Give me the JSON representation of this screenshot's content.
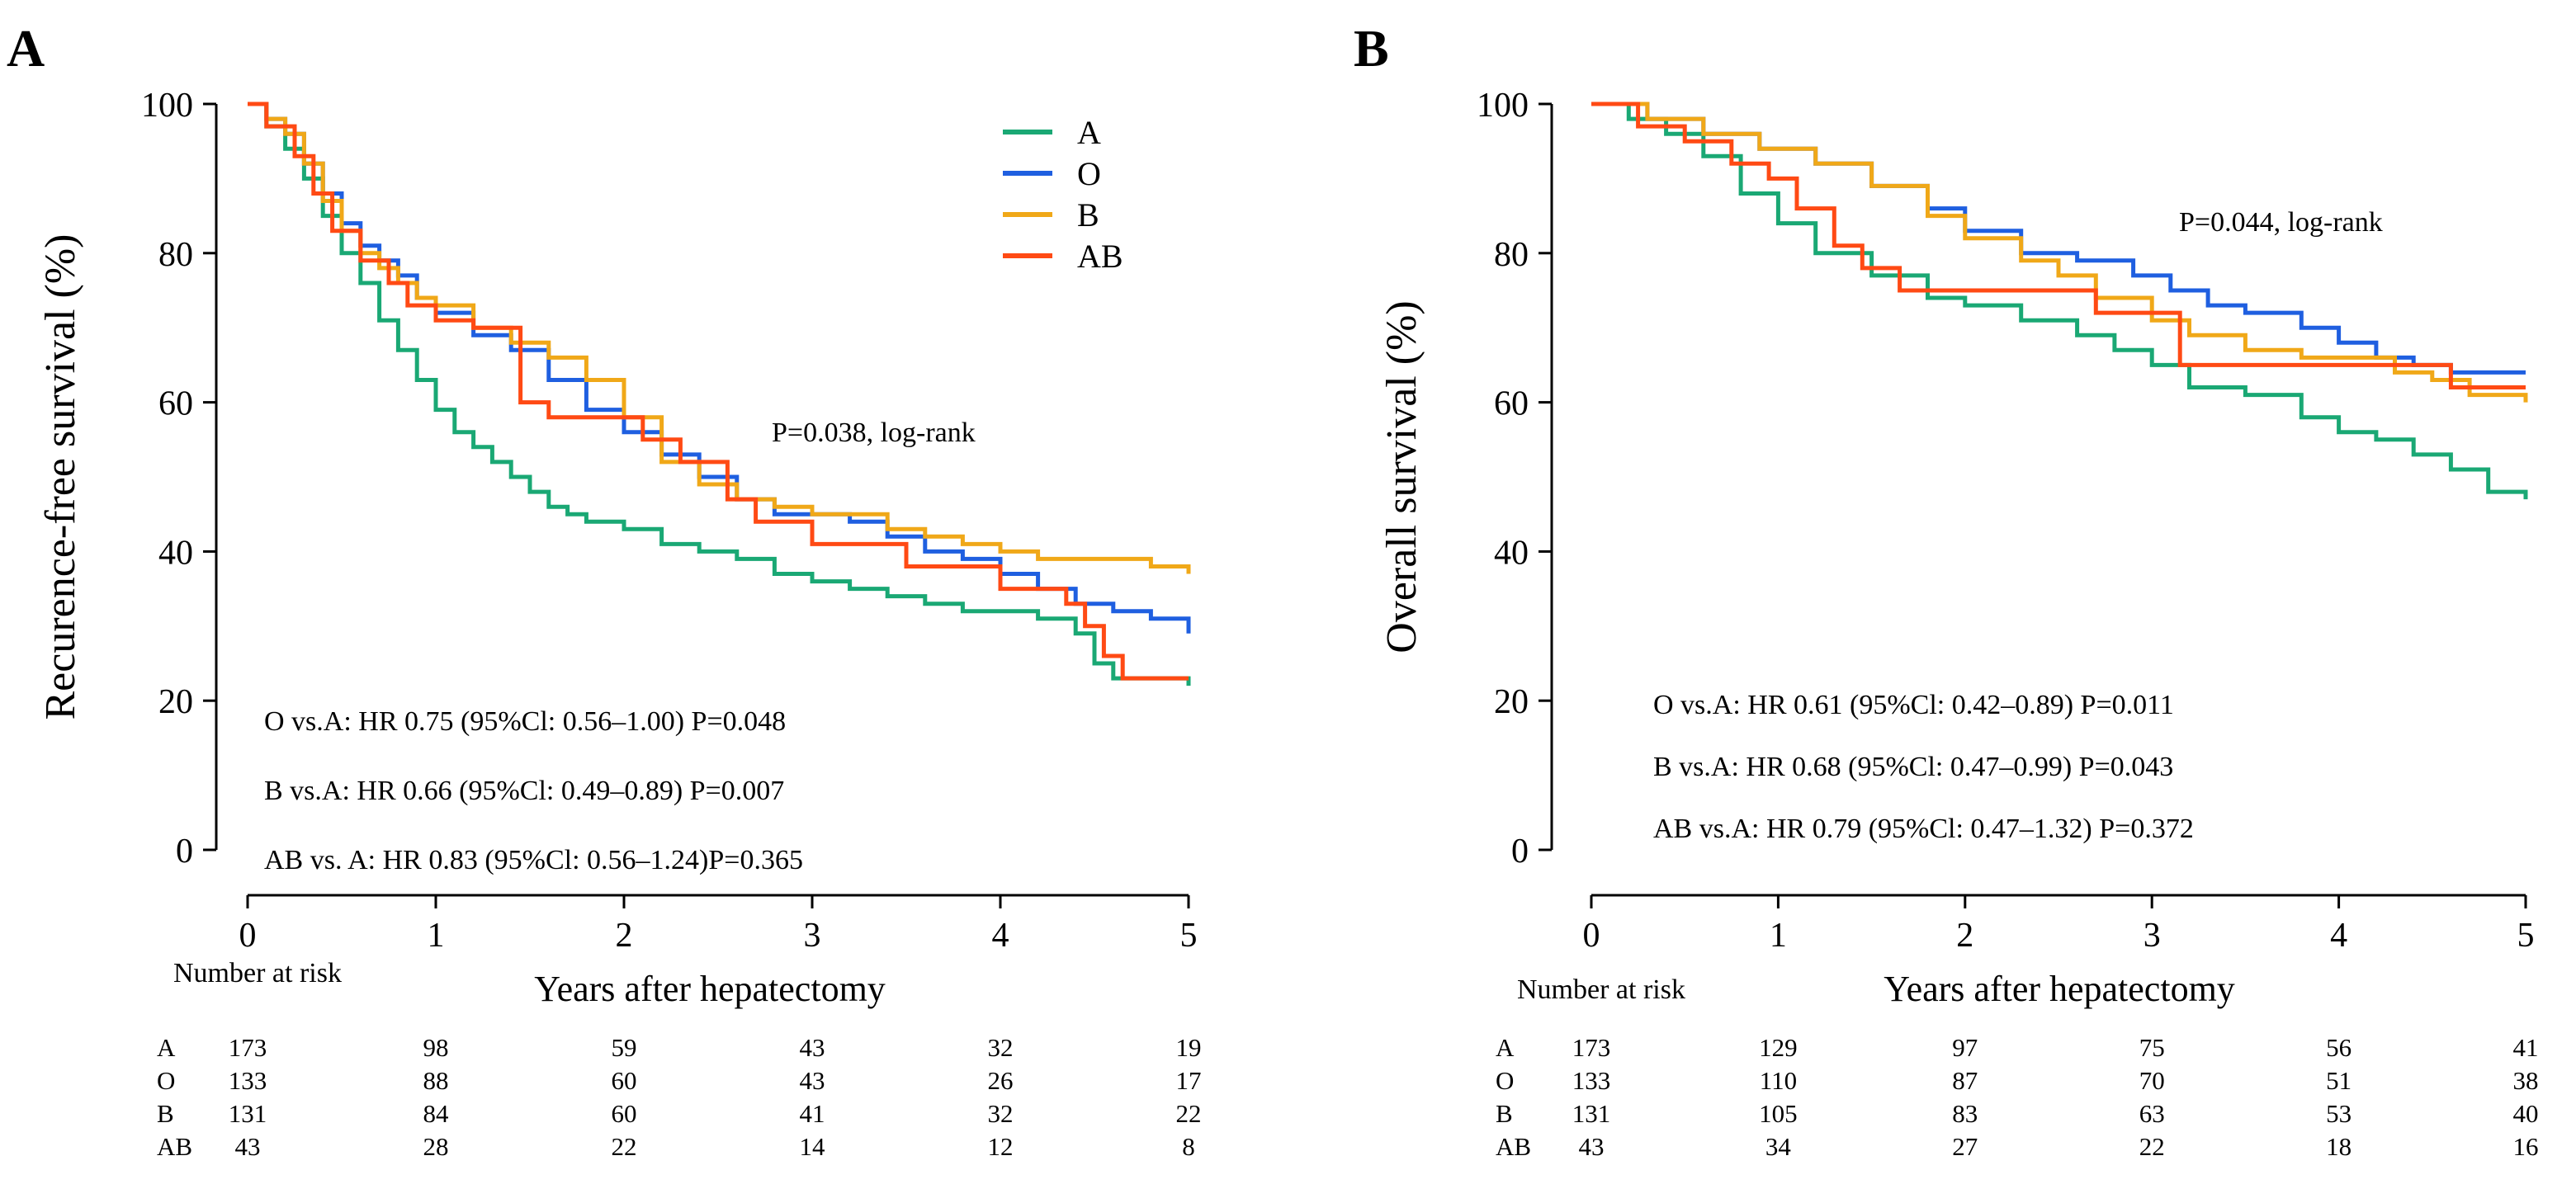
{
  "chart_data": [
    {
      "panel": "A",
      "type": "line",
      "subtype": "kaplan-meier",
      "title": "",
      "xlabel": "Years after hepatectomy",
      "ylabel": "Recurence-free survival (%)",
      "xlim": [
        0,
        5
      ],
      "ylim": [
        0,
        100
      ],
      "xticks": [
        "0",
        "1",
        "2",
        "3",
        "4",
        "5"
      ],
      "yticks": [
        "0",
        "20",
        "40",
        "60",
        "80",
        "100"
      ],
      "legend": {
        "position": "top-right",
        "entries": [
          "A",
          "O",
          "B",
          "AB"
        ]
      },
      "pvalue_text": "P=0.038, log-rank",
      "comparisons": [
        "O vs.A: HR 0.75 (95%Cl: 0.56–1.00)  P=0.048",
        "B vs.A: HR 0.66 (95%Cl: 0.49–0.89)  P=0.007",
        "AB vs. A: HR 0.83 (95%Cl: 0.56–1.24)P=0.365"
      ],
      "series": [
        {
          "name": "A",
          "color": "#1aa874",
          "x": [
            0,
            0.1,
            0.2,
            0.3,
            0.4,
            0.5,
            0.6,
            0.7,
            0.8,
            0.9,
            1.0,
            1.1,
            1.2,
            1.3,
            1.4,
            1.5,
            1.6,
            1.7,
            1.8,
            2.0,
            2.2,
            2.4,
            2.6,
            2.8,
            3.0,
            3.2,
            3.4,
            3.6,
            3.8,
            4.0,
            4.2,
            4.4,
            4.5,
            4.6,
            4.8,
            5.0
          ],
          "y": [
            100,
            97,
            94,
            90,
            85,
            80,
            76,
            71,
            67,
            63,
            59,
            56,
            54,
            52,
            50,
            48,
            46,
            45,
            44,
            43,
            41,
            40,
            39,
            37,
            36,
            35,
            34,
            33,
            32,
            32,
            31,
            29,
            25,
            23,
            23,
            22
          ]
        },
        {
          "name": "O",
          "color": "#1f5fe0",
          "x": [
            0,
            0.1,
            0.2,
            0.3,
            0.4,
            0.5,
            0.6,
            0.7,
            0.8,
            0.9,
            1.0,
            1.2,
            1.4,
            1.6,
            1.8,
            2.0,
            2.2,
            2.4,
            2.6,
            2.8,
            3.0,
            3.2,
            3.4,
            3.6,
            3.8,
            4.0,
            4.2,
            4.4,
            4.6,
            4.8,
            5.0
          ],
          "y": [
            100,
            98,
            96,
            92,
            88,
            84,
            81,
            79,
            77,
            74,
            72,
            69,
            67,
            63,
            59,
            56,
            53,
            50,
            47,
            45,
            45,
            44,
            42,
            40,
            39,
            37,
            35,
            33,
            32,
            31,
            29
          ]
        },
        {
          "name": "B",
          "color": "#f0a818",
          "x": [
            0,
            0.1,
            0.2,
            0.3,
            0.4,
            0.5,
            0.6,
            0.7,
            0.8,
            0.9,
            1.0,
            1.2,
            1.4,
            1.6,
            1.8,
            2.0,
            2.2,
            2.4,
            2.6,
            2.8,
            3.0,
            3.2,
            3.4,
            3.6,
            3.8,
            4.0,
            4.2,
            4.4,
            4.6,
            4.8,
            5.0
          ],
          "y": [
            100,
            98,
            96,
            92,
            87,
            83,
            80,
            78,
            76,
            74,
            73,
            70,
            68,
            66,
            63,
            58,
            52,
            49,
            47,
            46,
            45,
            45,
            43,
            42,
            41,
            40,
            39,
            39,
            39,
            38,
            37
          ]
        },
        {
          "name": "AB",
          "color": "#ff4a14",
          "x": [
            0,
            0.1,
            0.25,
            0.35,
            0.45,
            0.6,
            0.75,
            0.85,
            1.0,
            1.2,
            1.35,
            1.45,
            1.6,
            1.9,
            2.1,
            2.3,
            2.55,
            2.7,
            3.0,
            3.2,
            3.5,
            3.8,
            4.0,
            4.25,
            4.35,
            4.45,
            4.55,
            4.65,
            5.0
          ],
          "y": [
            100,
            97,
            93,
            88,
            83,
            79,
            76,
            73,
            71,
            70,
            70,
            60,
            58,
            58,
            55,
            52,
            47,
            44,
            41,
            41,
            38,
            38,
            35,
            35,
            33,
            30,
            26,
            23,
            23
          ]
        }
      ],
      "risk_table": {
        "header": "Number  at risk",
        "times": [
          0,
          1,
          2,
          3,
          4,
          5
        ],
        "rows": [
          {
            "group": "A",
            "counts": [
              "173",
              "98",
              "59",
              "43",
              "32",
              "19"
            ]
          },
          {
            "group": "O",
            "counts": [
              "133",
              "88",
              "60",
              "43",
              "26",
              "17"
            ]
          },
          {
            "group": "B",
            "counts": [
              "131",
              "84",
              "60",
              "41",
              "32",
              "22"
            ]
          },
          {
            "group": "AB",
            "counts": [
              "43",
              "28",
              "22",
              "14",
              "12",
              "8"
            ]
          }
        ]
      }
    },
    {
      "panel": "B",
      "type": "line",
      "subtype": "kaplan-meier",
      "title": "",
      "xlabel": "Years after hepatectomy",
      "ylabel": "Overall survival (%)",
      "xlim": [
        0,
        5
      ],
      "ylim": [
        0,
        100
      ],
      "xticks": [
        "0",
        "1",
        "2",
        "3",
        "4",
        "5"
      ],
      "yticks": [
        "0",
        "20",
        "40",
        "60",
        "80",
        "100"
      ],
      "pvalue_text": "P=0.044, log-rank",
      "comparisons": [
        "O vs.A: HR 0.61 (95%Cl: 0.42–0.89)  P=0.011",
        "B vs.A: HR 0.68 (95%Cl: 0.47–0.99)  P=0.043",
        "AB vs.A: HR 0.79 (95%Cl: 0.47–1.32)  P=0.372"
      ],
      "series": [
        {
          "name": "A",
          "color": "#1aa874",
          "x": [
            0,
            0.2,
            0.4,
            0.6,
            0.8,
            1.0,
            1.2,
            1.5,
            1.8,
            2.0,
            2.3,
            2.6,
            2.8,
            3.0,
            3.2,
            3.5,
            3.8,
            4.0,
            4.2,
            4.4,
            4.6,
            4.8,
            5.0
          ],
          "y": [
            100,
            98,
            96,
            93,
            88,
            84,
            80,
            77,
            74,
            73,
            71,
            69,
            67,
            65,
            62,
            61,
            58,
            56,
            55,
            53,
            51,
            48,
            47
          ]
        },
        {
          "name": "O",
          "color": "#1f5fe0",
          "x": [
            0,
            0.3,
            0.6,
            0.9,
            1.2,
            1.5,
            1.8,
            2.0,
            2.3,
            2.6,
            2.9,
            3.1,
            3.3,
            3.5,
            3.8,
            4.0,
            4.2,
            4.4,
            4.6,
            4.8,
            5.0
          ],
          "y": [
            100,
            98,
            96,
            94,
            92,
            89,
            86,
            83,
            80,
            79,
            77,
            75,
            73,
            72,
            70,
            68,
            66,
            65,
            64,
            64,
            64
          ]
        },
        {
          "name": "B",
          "color": "#f0a818",
          "x": [
            0,
            0.3,
            0.6,
            0.9,
            1.2,
            1.5,
            1.8,
            2.0,
            2.3,
            2.5,
            2.7,
            3.0,
            3.2,
            3.5,
            3.8,
            4.0,
            4.3,
            4.5,
            4.7,
            5.0
          ],
          "y": [
            100,
            98,
            96,
            94,
            92,
            89,
            85,
            82,
            79,
            77,
            74,
            71,
            69,
            67,
            66,
            66,
            64,
            63,
            61,
            60
          ]
        },
        {
          "name": "AB",
          "color": "#ff4a14",
          "x": [
            0,
            0.25,
            0.5,
            0.75,
            0.95,
            1.1,
            1.3,
            1.45,
            1.65,
            2.2,
            2.5,
            2.7,
            3.15,
            3.6,
            4.0,
            4.5,
            4.6,
            5.0
          ],
          "y": [
            100,
            97,
            95,
            92,
            90,
            86,
            81,
            78,
            75,
            75,
            75,
            72,
            65,
            65,
            65,
            65,
            62,
            62
          ]
        }
      ],
      "risk_table": {
        "header": "Number  at risk",
        "times": [
          0,
          1,
          2,
          3,
          4,
          5
        ],
        "rows": [
          {
            "group": "A",
            "counts": [
              "173",
              "129",
              "97",
              "75",
              "56",
              "41"
            ]
          },
          {
            "group": "O",
            "counts": [
              "133",
              "110",
              "87",
              "70",
              "51",
              "38"
            ]
          },
          {
            "group": "B",
            "counts": [
              "131",
              "105",
              "83",
              "63",
              "53",
              "40"
            ]
          },
          {
            "group": "AB",
            "counts": [
              "43",
              "34",
              "27",
              "22",
              "18",
              "16"
            ]
          }
        ]
      }
    }
  ]
}
